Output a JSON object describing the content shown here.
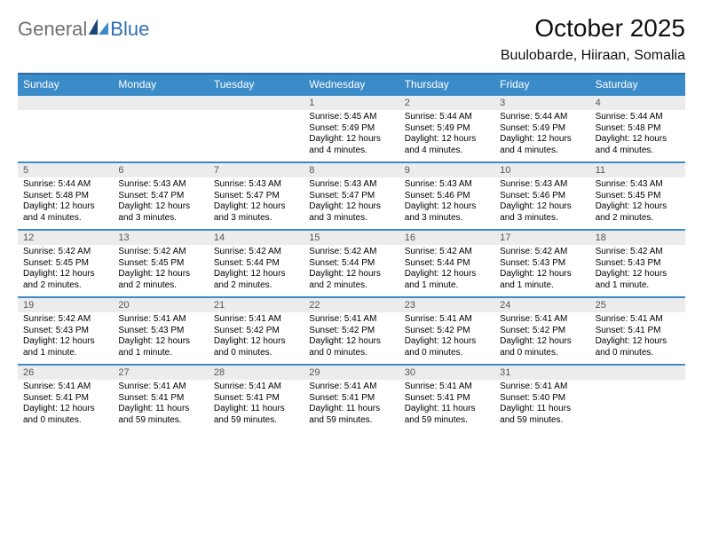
{
  "brand": {
    "part1": "General",
    "part2": "Blue"
  },
  "title": "October 2025",
  "location": "Buulobarde, Hiiraan, Somalia",
  "colors": {
    "header_bg": "#3b8bc8",
    "header_text": "#ffffff",
    "rule": "#3b8bc8",
    "daynum_bg": "#ececec",
    "daynum_text": "#555555",
    "body_text": "#000000",
    "page_bg": "#ffffff",
    "logo_gray": "#6f6f6f",
    "logo_blue": "#2f6fb2"
  },
  "typography": {
    "title_fontsize": 28,
    "location_fontsize": 16,
    "dow_fontsize": 12,
    "daynum_fontsize": 11,
    "cell_fontsize": 10,
    "font_family": "Arial"
  },
  "dow": [
    "Sunday",
    "Monday",
    "Tuesday",
    "Wednesday",
    "Thursday",
    "Friday",
    "Saturday"
  ],
  "weeks": [
    [
      {
        "n": "",
        "sunrise": "",
        "sunset": "",
        "daylight": ""
      },
      {
        "n": "",
        "sunrise": "",
        "sunset": "",
        "daylight": ""
      },
      {
        "n": "",
        "sunrise": "",
        "sunset": "",
        "daylight": ""
      },
      {
        "n": "1",
        "sunrise": "Sunrise: 5:45 AM",
        "sunset": "Sunset: 5:49 PM",
        "daylight": "Daylight: 12 hours and 4 minutes."
      },
      {
        "n": "2",
        "sunrise": "Sunrise: 5:44 AM",
        "sunset": "Sunset: 5:49 PM",
        "daylight": "Daylight: 12 hours and 4 minutes."
      },
      {
        "n": "3",
        "sunrise": "Sunrise: 5:44 AM",
        "sunset": "Sunset: 5:49 PM",
        "daylight": "Daylight: 12 hours and 4 minutes."
      },
      {
        "n": "4",
        "sunrise": "Sunrise: 5:44 AM",
        "sunset": "Sunset: 5:48 PM",
        "daylight": "Daylight: 12 hours and 4 minutes."
      }
    ],
    [
      {
        "n": "5",
        "sunrise": "Sunrise: 5:44 AM",
        "sunset": "Sunset: 5:48 PM",
        "daylight": "Daylight: 12 hours and 4 minutes."
      },
      {
        "n": "6",
        "sunrise": "Sunrise: 5:43 AM",
        "sunset": "Sunset: 5:47 PM",
        "daylight": "Daylight: 12 hours and 3 minutes."
      },
      {
        "n": "7",
        "sunrise": "Sunrise: 5:43 AM",
        "sunset": "Sunset: 5:47 PM",
        "daylight": "Daylight: 12 hours and 3 minutes."
      },
      {
        "n": "8",
        "sunrise": "Sunrise: 5:43 AM",
        "sunset": "Sunset: 5:47 PM",
        "daylight": "Daylight: 12 hours and 3 minutes."
      },
      {
        "n": "9",
        "sunrise": "Sunrise: 5:43 AM",
        "sunset": "Sunset: 5:46 PM",
        "daylight": "Daylight: 12 hours and 3 minutes."
      },
      {
        "n": "10",
        "sunrise": "Sunrise: 5:43 AM",
        "sunset": "Sunset: 5:46 PM",
        "daylight": "Daylight: 12 hours and 3 minutes."
      },
      {
        "n": "11",
        "sunrise": "Sunrise: 5:43 AM",
        "sunset": "Sunset: 5:45 PM",
        "daylight": "Daylight: 12 hours and 2 minutes."
      }
    ],
    [
      {
        "n": "12",
        "sunrise": "Sunrise: 5:42 AM",
        "sunset": "Sunset: 5:45 PM",
        "daylight": "Daylight: 12 hours and 2 minutes."
      },
      {
        "n": "13",
        "sunrise": "Sunrise: 5:42 AM",
        "sunset": "Sunset: 5:45 PM",
        "daylight": "Daylight: 12 hours and 2 minutes."
      },
      {
        "n": "14",
        "sunrise": "Sunrise: 5:42 AM",
        "sunset": "Sunset: 5:44 PM",
        "daylight": "Daylight: 12 hours and 2 minutes."
      },
      {
        "n": "15",
        "sunrise": "Sunrise: 5:42 AM",
        "sunset": "Sunset: 5:44 PM",
        "daylight": "Daylight: 12 hours and 2 minutes."
      },
      {
        "n": "16",
        "sunrise": "Sunrise: 5:42 AM",
        "sunset": "Sunset: 5:44 PM",
        "daylight": "Daylight: 12 hours and 1 minute."
      },
      {
        "n": "17",
        "sunrise": "Sunrise: 5:42 AM",
        "sunset": "Sunset: 5:43 PM",
        "daylight": "Daylight: 12 hours and 1 minute."
      },
      {
        "n": "18",
        "sunrise": "Sunrise: 5:42 AM",
        "sunset": "Sunset: 5:43 PM",
        "daylight": "Daylight: 12 hours and 1 minute."
      }
    ],
    [
      {
        "n": "19",
        "sunrise": "Sunrise: 5:42 AM",
        "sunset": "Sunset: 5:43 PM",
        "daylight": "Daylight: 12 hours and 1 minute."
      },
      {
        "n": "20",
        "sunrise": "Sunrise: 5:41 AM",
        "sunset": "Sunset: 5:43 PM",
        "daylight": "Daylight: 12 hours and 1 minute."
      },
      {
        "n": "21",
        "sunrise": "Sunrise: 5:41 AM",
        "sunset": "Sunset: 5:42 PM",
        "daylight": "Daylight: 12 hours and 0 minutes."
      },
      {
        "n": "22",
        "sunrise": "Sunrise: 5:41 AM",
        "sunset": "Sunset: 5:42 PM",
        "daylight": "Daylight: 12 hours and 0 minutes."
      },
      {
        "n": "23",
        "sunrise": "Sunrise: 5:41 AM",
        "sunset": "Sunset: 5:42 PM",
        "daylight": "Daylight: 12 hours and 0 minutes."
      },
      {
        "n": "24",
        "sunrise": "Sunrise: 5:41 AM",
        "sunset": "Sunset: 5:42 PM",
        "daylight": "Daylight: 12 hours and 0 minutes."
      },
      {
        "n": "25",
        "sunrise": "Sunrise: 5:41 AM",
        "sunset": "Sunset: 5:41 PM",
        "daylight": "Daylight: 12 hours and 0 minutes."
      }
    ],
    [
      {
        "n": "26",
        "sunrise": "Sunrise: 5:41 AM",
        "sunset": "Sunset: 5:41 PM",
        "daylight": "Daylight: 12 hours and 0 minutes."
      },
      {
        "n": "27",
        "sunrise": "Sunrise: 5:41 AM",
        "sunset": "Sunset: 5:41 PM",
        "daylight": "Daylight: 11 hours and 59 minutes."
      },
      {
        "n": "28",
        "sunrise": "Sunrise: 5:41 AM",
        "sunset": "Sunset: 5:41 PM",
        "daylight": "Daylight: 11 hours and 59 minutes."
      },
      {
        "n": "29",
        "sunrise": "Sunrise: 5:41 AM",
        "sunset": "Sunset: 5:41 PM",
        "daylight": "Daylight: 11 hours and 59 minutes."
      },
      {
        "n": "30",
        "sunrise": "Sunrise: 5:41 AM",
        "sunset": "Sunset: 5:41 PM",
        "daylight": "Daylight: 11 hours and 59 minutes."
      },
      {
        "n": "31",
        "sunrise": "Sunrise: 5:41 AM",
        "sunset": "Sunset: 5:40 PM",
        "daylight": "Daylight: 11 hours and 59 minutes."
      },
      {
        "n": "",
        "sunrise": "",
        "sunset": "",
        "daylight": ""
      }
    ]
  ]
}
